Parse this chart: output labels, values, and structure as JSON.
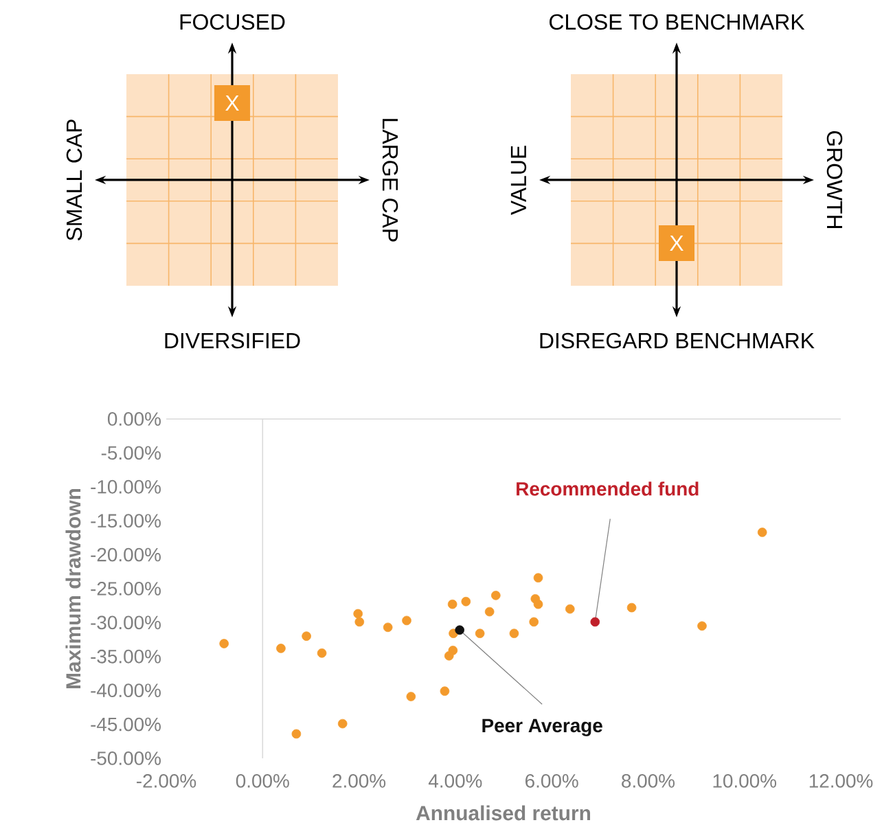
{
  "chart_data": [
    {
      "type": "other",
      "annotations": [
        "FOCUSED",
        "DIVERSIFIED",
        "SMALL CAP",
        "LARGE CAP",
        "X"
      ]
    },
    {
      "type": "other",
      "annotations": [
        "CLOSE TO BENCHMARK",
        "DISREGARD BENCHMARK",
        "VALUE",
        "GROWTH",
        "X"
      ]
    },
    {
      "type": "scatter",
      "xlabel": "Annualised return",
      "ylabel": "Maximum drawdown",
      "marker": "circle",
      "xlim": [
        -2,
        12
      ],
      "ylim": [
        -50,
        0
      ],
      "xticks": [
        {
          "value": -2,
          "label": "-2.00%"
        },
        {
          "value": 0,
          "label": "0.00%"
        },
        {
          "value": 2,
          "label": "2.00%"
        },
        {
          "value": 4,
          "label": "4.00%"
        },
        {
          "value": 6,
          "label": "6.00%"
        },
        {
          "value": 8,
          "label": "8.00%"
        },
        {
          "value": 10,
          "label": "10.00%"
        },
        {
          "value": 12,
          "label": "12.00%"
        }
      ],
      "yticks": [
        {
          "value": 0,
          "label": "0.00%"
        },
        {
          "value": -5,
          "label": "-5.00%"
        },
        {
          "value": -10,
          "label": "-10.00%"
        },
        {
          "value": -15,
          "label": "-15.00%"
        },
        {
          "value": -20,
          "label": "-20.00%"
        },
        {
          "value": -25,
          "label": "-25.00%"
        },
        {
          "value": -30,
          "label": "-30.00%"
        },
        {
          "value": -35,
          "label": "-35.00%"
        },
        {
          "value": -40,
          "label": "-40.00%"
        },
        {
          "value": -45,
          "label": "-45.00%"
        },
        {
          "value": -50,
          "label": "-50.00%"
        }
      ],
      "series": [
        {
          "color": "#f39a2c",
          "x": [
            -0.8,
            0.38,
            0.91,
            1.23,
            0.7,
            1.66,
            1.98,
            2.01,
            2.6,
            2.99,
            3.08,
            3.78,
            3.94,
            4.22,
            3.96,
            3.95,
            3.87,
            4.71,
            4.84,
            4.51,
            5.22,
            5.63,
            5.72,
            5.66,
            5.72,
            6.38,
            7.66,
            9.12,
            10.37
          ],
          "values": [
            -33.1,
            -33.8,
            -32.0,
            -34.5,
            -46.4,
            -44.9,
            -28.7,
            -29.9,
            -30.7,
            -29.7,
            -40.9,
            -40.1,
            -27.3,
            -26.9,
            -31.6,
            -34.1,
            -34.9,
            -28.4,
            -26.0,
            -31.6,
            -31.6,
            -29.9,
            -23.4,
            -26.5,
            -27.3,
            -28.0,
            -27.8,
            -30.5,
            -16.7
          ]
        },
        {
          "name": "Peer Average",
          "color": "#111111",
          "x": [
            4.09
          ],
          "values": [
            -31.1
          ]
        },
        {
          "name": "Recommended fund",
          "color": "#c0202a",
          "x": [
            6.9
          ],
          "values": [
            -29.9
          ]
        }
      ]
    }
  ]
}
